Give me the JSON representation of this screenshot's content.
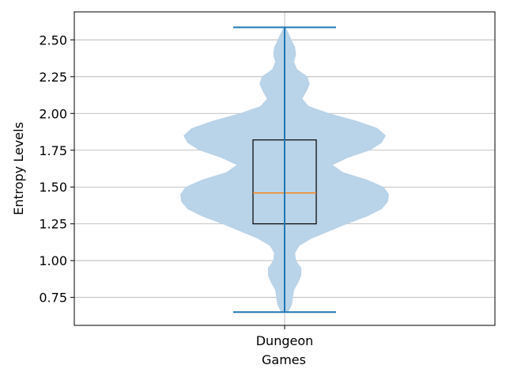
{
  "chart_data": {
    "type": "violin",
    "title": "",
    "xlabel": "Games",
    "ylabel": "Entropy Levels",
    "categories": [
      "Dungeon"
    ],
    "ylim": [
      0.56,
      2.69
    ],
    "yticks": [
      0.75,
      1.0,
      1.25,
      1.5,
      1.75,
      2.0,
      2.25,
      2.5
    ],
    "ytick_labels": [
      "0.75",
      "1.00",
      "1.25",
      "1.50",
      "1.75",
      "2.00",
      "2.25",
      "2.50"
    ],
    "grid": true,
    "box": {
      "q1": 1.25,
      "median": 1.46,
      "q3": 1.82
    },
    "whiskers": {
      "min": 0.65,
      "max": 2.585
    },
    "density": [
      [
        0.65,
        0.035
      ],
      [
        0.7,
        0.07
      ],
      [
        0.75,
        0.08
      ],
      [
        0.8,
        0.09
      ],
      [
        0.85,
        0.13
      ],
      [
        0.9,
        0.16
      ],
      [
        0.95,
        0.16
      ],
      [
        1.0,
        0.11
      ],
      [
        1.05,
        0.1
      ],
      [
        1.1,
        0.14
      ],
      [
        1.15,
        0.26
      ],
      [
        1.2,
        0.43
      ],
      [
        1.25,
        0.6
      ],
      [
        1.3,
        0.79
      ],
      [
        1.35,
        0.93
      ],
      [
        1.4,
        0.99
      ],
      [
        1.45,
        1.0
      ],
      [
        1.5,
        0.95
      ],
      [
        1.55,
        0.79
      ],
      [
        1.6,
        0.56
      ],
      [
        1.65,
        0.46
      ],
      [
        1.7,
        0.61
      ],
      [
        1.75,
        0.82
      ],
      [
        1.8,
        0.93
      ],
      [
        1.85,
        0.97
      ],
      [
        1.9,
        0.89
      ],
      [
        1.95,
        0.69
      ],
      [
        2.0,
        0.43
      ],
      [
        2.05,
        0.23
      ],
      [
        2.1,
        0.17
      ],
      [
        2.15,
        0.21
      ],
      [
        2.2,
        0.24
      ],
      [
        2.25,
        0.22
      ],
      [
        2.3,
        0.12
      ],
      [
        2.35,
        0.09
      ],
      [
        2.4,
        0.11
      ],
      [
        2.45,
        0.1
      ],
      [
        2.5,
        0.065
      ],
      [
        2.55,
        0.035
      ],
      [
        2.585,
        0.01
      ]
    ],
    "colors": {
      "violin_fill": "#b9d3e8",
      "whisker_line": "#1f77b4",
      "median_line": "#ff7f0e",
      "box_edge": "#000000",
      "grid": "#b0b0b0"
    }
  }
}
